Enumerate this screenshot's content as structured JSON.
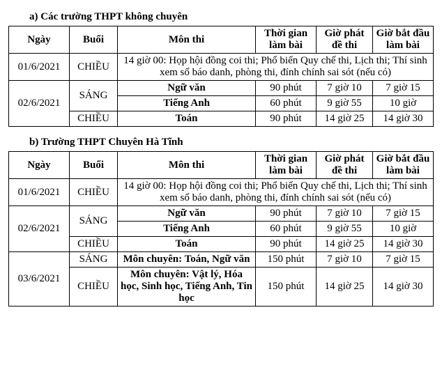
{
  "sectionA": {
    "title": "a) Các trường THPT không chuyên",
    "headers": {
      "date": "Ngày",
      "session": "Buổi",
      "subject": "Môn thi",
      "duration": "Thời gian làm bài",
      "dispatch": "Giờ phát đề thi",
      "start": "Giờ bắt đầu làm bài"
    },
    "rows": {
      "r1_date": "01/6/2021",
      "r1_session": "CHIỀU",
      "r1_note": "14 giờ 00: Họp hội đồng coi thi; Phổ biến Quy chế thi, Lịch thi; Thí sinh xem số báo danh, phòng thi, đính chính sai sót (nếu có)",
      "r2_date": "02/6/2021",
      "r2_session_m": "SÁNG",
      "r2_subj1": "Ngữ văn",
      "r2_dur1": "90 phút",
      "r2_disp1": "7 giờ 10",
      "r2_start1": "7 giờ 15",
      "r2_subj2": "Tiếng Anh",
      "r2_dur2": "60 phút",
      "r2_disp2": "9 giờ 55",
      "r2_start2": "10 giờ",
      "r2_session_a": "CHIỀU",
      "r2_subj3": "Toán",
      "r2_dur3": "90 phút",
      "r2_disp3": "14 giờ 25",
      "r2_start3": "14 giờ 30"
    }
  },
  "sectionB": {
    "title": "b) Trường THPT Chuyên Hà Tĩnh",
    "headers": {
      "date": "Ngày",
      "session": "Buổi",
      "subject": "Môn thi",
      "duration": "Thời gian làm bài",
      "dispatch": "Giờ phát đề thi",
      "start": "Giờ bắt đầu làm bài"
    },
    "rows": {
      "r1_date": "01/6/2021",
      "r1_session": "CHIỀU",
      "r1_note": "14 giờ 00: Họp hội đồng coi thi; Phổ biến Quy chế thi, Lịch thi; Thí sinh xem số báo danh, phòng thi, đính chính sai sót (nếu có)",
      "r2_date": "02/6/2021",
      "r2_session_m": "SÁNG",
      "r2_subj1": "Ngữ văn",
      "r2_dur1": "90 phút",
      "r2_disp1": "7 giờ 10",
      "r2_start1": "7 giờ 15",
      "r2_subj2": "Tiếng Anh",
      "r2_dur2": "60 phút",
      "r2_disp2": "9 giờ 55",
      "r2_start2": "10 giờ",
      "r2_session_a": "CHIỀU",
      "r2_subj3": "Toán",
      "r2_dur3": "90 phút",
      "r2_disp3": "14 giờ 25",
      "r2_start3": "14 giờ 30",
      "r3_date": "03/6/2021",
      "r3_session_m": "SÁNG",
      "r3_subj1": "Môn chuyên: Toán, Ngữ văn",
      "r3_dur1": "150 phút",
      "r3_disp1": "7 giờ 10",
      "r3_start1": "7 giờ 15",
      "r3_session_a": "CHIỀU",
      "r3_subj2": "Môn chuyên: Vật lý, Hóa học, Sinh học, Tiếng Anh, Tin học",
      "r3_dur2": "150 phút",
      "r3_disp2": "14 giờ 25",
      "r3_start2": "14 giờ 30"
    }
  }
}
